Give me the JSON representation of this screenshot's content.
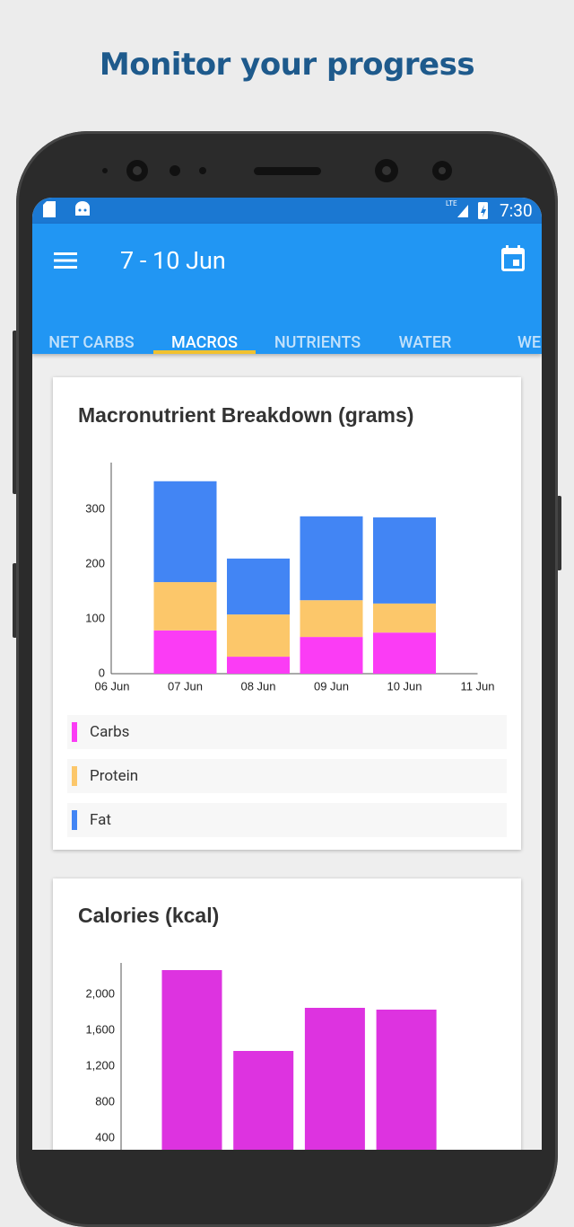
{
  "header": {
    "title": "Monitor your progress"
  },
  "status_bar": {
    "network": "LTE",
    "time": "7:30"
  },
  "app_bar": {
    "title": "7 - 10 Jun",
    "tabs": [
      "NET CARBS",
      "MACROS",
      "NUTRIENTS",
      "WATER",
      "WEIGHT"
    ],
    "selected_tab": 1
  },
  "chart_data": [
    {
      "type": "bar",
      "stacked": true,
      "title": "Macronutrient Breakdown (grams)",
      "categories": [
        "06 Jun",
        "07 Jun",
        "08 Jun",
        "09 Jun",
        "10 Jun",
        "11 Jun"
      ],
      "series": [
        {
          "name": "Carbs",
          "color": "#fb3cf5",
          "values": [
            null,
            79,
            31,
            67,
            75,
            null
          ]
        },
        {
          "name": "Protein",
          "color": "#fcc76a",
          "values": [
            null,
            88,
            77,
            67,
            53,
            null
          ]
        },
        {
          "name": "Fat",
          "color": "#4285f4",
          "values": [
            null,
            184,
            102,
            153,
            157,
            null
          ]
        }
      ],
      "ylim": [
        0,
        385
      ],
      "yticks": [
        0,
        100,
        200,
        300
      ],
      "grid": false,
      "legend": "bottom"
    },
    {
      "type": "bar",
      "title": "Calories (kcal)",
      "categories": [
        null,
        null,
        null,
        null
      ],
      "values": [
        2270,
        1370,
        1850,
        1830
      ],
      "color": "#dd33e0",
      "ylim": [
        0,
        2350
      ],
      "yticks": [
        400,
        800,
        {
          "value": 1200,
          "label": "1,200"
        },
        {
          "value": 1600,
          "label": "1,600"
        },
        {
          "value": 2000,
          "label": "2,000"
        }
      ],
      "grid": false
    }
  ]
}
